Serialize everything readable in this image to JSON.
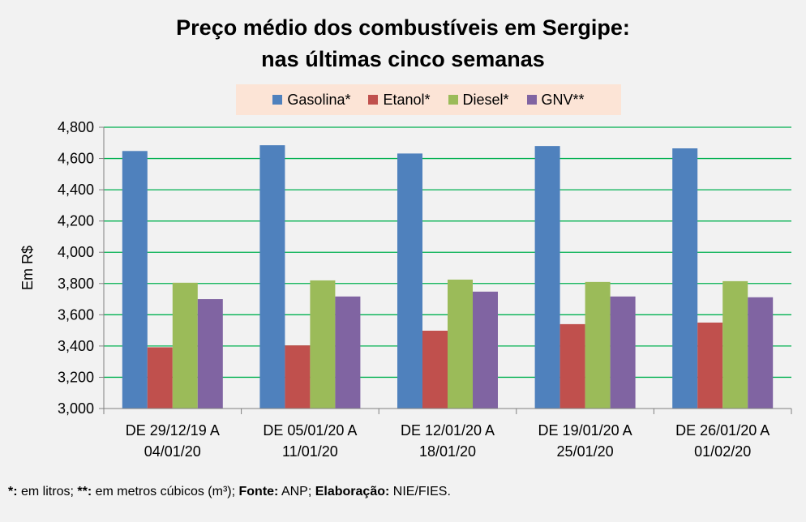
{
  "chart_data": {
    "type": "bar",
    "title_lines": [
      "Preço médio dos combustíveis em Sergipe:",
      "nas últimas cinco semanas"
    ],
    "ylabel": "Em R$",
    "xlabel": "",
    "ylim": [
      3.0,
      4.8
    ],
    "yticks": [
      "3,000",
      "3,200",
      "3,400",
      "3,600",
      "3,800",
      "4,000",
      "4,200",
      "4,400",
      "4,600",
      "4,800"
    ],
    "grid": true,
    "legend_position": "top-center",
    "categories": [
      [
        "DE 29/12/19 A",
        "04/01/20"
      ],
      [
        "DE 05/01/20 A",
        "11/01/20"
      ],
      [
        "DE 12/01/20 A",
        "18/01/20"
      ],
      [
        "DE 19/01/20 A",
        "25/01/20"
      ],
      [
        "DE 26/01/20 A",
        "01/02/20"
      ]
    ],
    "series": [
      {
        "name": "Gasolina*",
        "color": "#4f81bd",
        "values": [
          4.648,
          4.685,
          4.632,
          4.68,
          4.665
        ]
      },
      {
        "name": "Etanol*",
        "color": "#c0504d",
        "values": [
          3.392,
          3.404,
          3.498,
          3.54,
          3.55
        ]
      },
      {
        "name": "Diesel*",
        "color": "#9bbb59",
        "values": [
          3.805,
          3.82,
          3.825,
          3.81,
          3.815
        ]
      },
      {
        "name": "GNV**",
        "color": "#8064a2",
        "values": [
          3.7,
          3.717,
          3.748,
          3.717,
          3.712
        ]
      }
    ]
  },
  "footnote": {
    "mark1": "*:",
    "text1": " em litros; ",
    "mark2": "**:",
    "text2": " em metros cúbicos (m³); ",
    "fonte_label": "Fonte:",
    "fonte_value": " ANP; ",
    "elab_label": "Elaboração:",
    "elab_value": " NIE/FIES."
  },
  "colors": {
    "background": "#f2f2f2",
    "legend_background": "#fce4d6",
    "gridline": "#00b050"
  }
}
